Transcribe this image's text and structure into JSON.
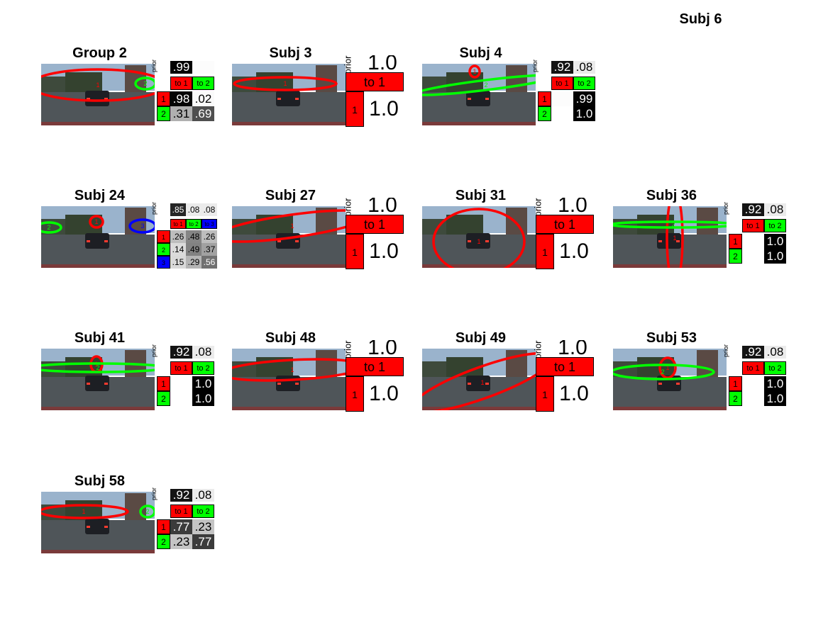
{
  "extra_title": "Subj 6",
  "colors": {
    "cluster1": "#ff0000",
    "cluster2": "#00ff00",
    "cluster3": "#0000ff"
  },
  "labels": {
    "prior": "prior"
  },
  "panels": [
    {
      "id": "group2",
      "title": "Group 2",
      "k": 2,
      "prior": [
        ".99",
        ""
      ],
      "prior_vals": [
        0.99,
        0.01
      ],
      "headers": [
        "to 1",
        "to 2"
      ],
      "row_labels": [
        "1",
        "2"
      ],
      "cells": [
        [
          ".98",
          ".02"
        ],
        [
          ".31",
          ".69"
        ]
      ],
      "cell_vals": [
        [
          0.98,
          0.02
        ],
        [
          0.31,
          0.69
        ]
      ],
      "markers": [
        {
          "label": "1",
          "color": "#ff0000"
        },
        {
          "label": "2",
          "color": "#00ff00"
        }
      ]
    },
    {
      "id": "subj3",
      "title": "Subj 3",
      "k": 1,
      "prior": [
        "1.0"
      ],
      "headers": [
        "to 1"
      ],
      "row_labels": [
        "1"
      ],
      "cells": [
        [
          "1.0"
        ]
      ],
      "markers": [
        {
          "label": "1",
          "color": "#ff0000"
        }
      ]
    },
    {
      "id": "subj4",
      "title": "Subj 4",
      "k": 2,
      "prior": [
        ".92",
        ".08"
      ],
      "prior_vals": [
        0.92,
        0.08
      ],
      "headers": [
        "to 1",
        "to 2"
      ],
      "row_labels": [
        "1",
        "2"
      ],
      "cells": [
        [
          "",
          ".99"
        ],
        [
          "",
          "1.0"
        ]
      ],
      "cell_vals": [
        [
          0.01,
          0.99
        ],
        [
          0.0,
          1.0
        ]
      ],
      "markers": [
        {
          "label": "1",
          "color": "#ff0000"
        },
        {
          "label": "2",
          "color": "#00ff00"
        }
      ]
    },
    {
      "id": "subj24",
      "title": "Subj 24",
      "k": 3,
      "prior": [
        ".85",
        ".08",
        ".08"
      ],
      "prior_vals": [
        0.85,
        0.08,
        0.08
      ],
      "headers": [
        "to 1",
        "to 2",
        "to 3"
      ],
      "row_labels": [
        "1",
        "2",
        "3"
      ],
      "cells": [
        [
          ".26",
          ".48",
          ".26"
        ],
        [
          ".14",
          ".49",
          ".37"
        ],
        [
          ".15",
          ".29",
          ".56"
        ]
      ],
      "cell_vals": [
        [
          0.26,
          0.48,
          0.26
        ],
        [
          0.14,
          0.49,
          0.37
        ],
        [
          0.15,
          0.29,
          0.56
        ]
      ],
      "markers": [
        {
          "label": "1",
          "color": "#ff0000"
        },
        {
          "label": "2",
          "color": "#00ff00"
        },
        {
          "label": "3",
          "color": "#0000ff"
        }
      ]
    },
    {
      "id": "subj27",
      "title": "Subj 27",
      "k": 1,
      "prior": [
        "1.0"
      ],
      "headers": [
        "to 1"
      ],
      "row_labels": [
        "1"
      ],
      "cells": [
        [
          "1.0"
        ]
      ],
      "markers": [
        {
          "label": "1",
          "color": "#ff0000"
        }
      ]
    },
    {
      "id": "subj31",
      "title": "Subj 31",
      "k": 1,
      "prior": [
        "1.0"
      ],
      "headers": [
        "to 1"
      ],
      "row_labels": [
        "1"
      ],
      "cells": [
        [
          "1.0"
        ]
      ],
      "markers": [
        {
          "label": "1",
          "color": "#ff0000"
        }
      ]
    },
    {
      "id": "subj36",
      "title": "Subj 36",
      "k": 2,
      "prior": [
        ".92",
        ".08"
      ],
      "prior_vals": [
        0.92,
        0.08
      ],
      "headers": [
        "to 1",
        "to 2"
      ],
      "row_labels": [
        "1",
        "2"
      ],
      "cells": [
        [
          "",
          "1.0"
        ],
        [
          "",
          "1.0"
        ]
      ],
      "cell_vals": [
        [
          0.0,
          1.0
        ],
        [
          0.0,
          1.0
        ]
      ],
      "markers": [
        {
          "label": "1",
          "color": "#ff0000"
        },
        {
          "label": "2",
          "color": "#00ff00"
        }
      ]
    },
    {
      "id": "subj41",
      "title": "Subj 41",
      "k": 2,
      "prior": [
        ".92",
        ".08"
      ],
      "prior_vals": [
        0.92,
        0.08
      ],
      "headers": [
        "to 1",
        "to 2"
      ],
      "row_labels": [
        "1",
        "2"
      ],
      "cells": [
        [
          "",
          "1.0"
        ],
        [
          "",
          "1.0"
        ]
      ],
      "cell_vals": [
        [
          0.0,
          1.0
        ],
        [
          0.0,
          1.0
        ]
      ],
      "markers": [
        {
          "label": "1",
          "color": "#ff0000"
        },
        {
          "label": "2",
          "color": "#00ff00"
        }
      ]
    },
    {
      "id": "subj48",
      "title": "Subj 48",
      "k": 1,
      "prior": [
        "1.0"
      ],
      "headers": [
        "to 1"
      ],
      "row_labels": [
        "1"
      ],
      "cells": [
        [
          "1.0"
        ]
      ],
      "markers": [
        {
          "label": "1",
          "color": "#ff0000"
        }
      ]
    },
    {
      "id": "subj49",
      "title": "Subj 49",
      "k": 1,
      "prior": [
        "1.0"
      ],
      "headers": [
        "to 1"
      ],
      "row_labels": [
        "1"
      ],
      "cells": [
        [
          "1.0"
        ]
      ],
      "markers": [
        {
          "label": "1",
          "color": "#ff0000"
        }
      ]
    },
    {
      "id": "subj53",
      "title": "Subj 53",
      "k": 2,
      "prior": [
        ".92",
        ".08"
      ],
      "prior_vals": [
        0.92,
        0.08
      ],
      "headers": [
        "to 1",
        "to 2"
      ],
      "row_labels": [
        "1",
        "2"
      ],
      "cells": [
        [
          "",
          "1.0"
        ],
        [
          "",
          "1.0"
        ]
      ],
      "cell_vals": [
        [
          0.0,
          1.0
        ],
        [
          0.0,
          1.0
        ]
      ],
      "markers": [
        {
          "label": "1",
          "color": "#ff0000"
        },
        {
          "label": "2",
          "color": "#00ff00"
        }
      ]
    },
    {
      "id": "subj58",
      "title": "Subj 58",
      "k": 2,
      "prior": [
        ".92",
        ".08"
      ],
      "prior_vals": [
        0.92,
        0.08
      ],
      "headers": [
        "to 1",
        "to 2"
      ],
      "row_labels": [
        "1",
        "2"
      ],
      "cells": [
        [
          ".77",
          ".23"
        ],
        [
          ".23",
          ".77"
        ]
      ],
      "cell_vals": [
        [
          0.77,
          0.23
        ],
        [
          0.23,
          0.77
        ]
      ],
      "markers": [
        {
          "label": "1",
          "color": "#ff0000"
        },
        {
          "label": "2",
          "color": "#00ff00"
        }
      ]
    }
  ]
}
